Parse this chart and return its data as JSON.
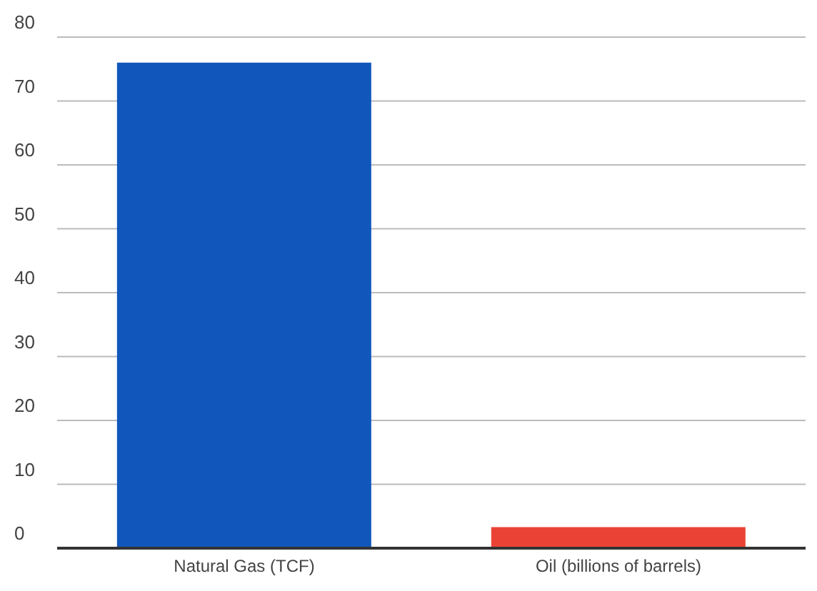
{
  "chart_data": {
    "type": "bar",
    "categories": [
      "Natural Gas (TCF)",
      "Oil (billions of barrels)"
    ],
    "values": [
      76,
      3.3
    ],
    "colors": [
      "#1157bb",
      "#ea4335"
    ],
    "ylim": [
      0,
      80
    ],
    "yticks": [
      0,
      10,
      20,
      30,
      40,
      50,
      60,
      70,
      80
    ],
    "grid": "y"
  }
}
